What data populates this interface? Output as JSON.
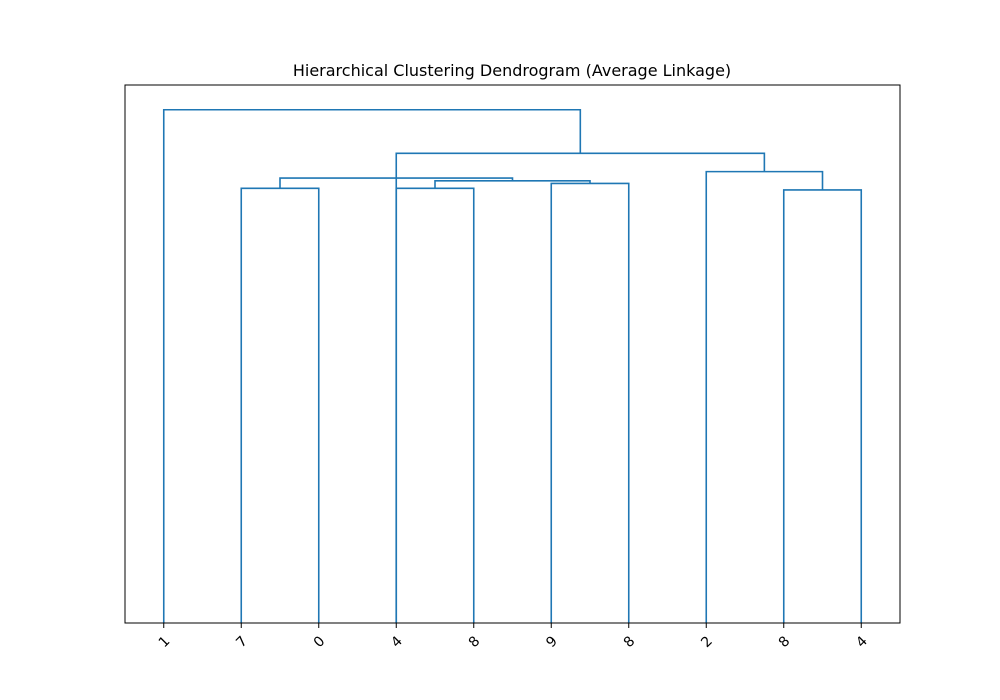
{
  "chart_data": {
    "type": "dendrogram",
    "title": "Hierarchical Clustering Dendrogram (Average Linkage)",
    "xlabel": "",
    "ylabel": "",
    "leaf_labels": [
      "1",
      "7",
      "0",
      "4",
      "8",
      "9",
      "8",
      "2",
      "8",
      "4"
    ],
    "ylim": [
      0,
      1.0
    ],
    "grid": false,
    "y_ticks_shown": false,
    "color": "#1f77b4",
    "links": [
      {
        "left": 2,
        "right": 3,
        "height": 0.808
      },
      {
        "left": 4,
        "right": 5,
        "height": 0.808
      },
      {
        "left": 6,
        "right": 7,
        "height": 0.817
      },
      {
        "left": 9,
        "right": 10,
        "height": 0.805
      },
      {
        "left": 4.5,
        "right": 6.5,
        "height": 0.822
      },
      {
        "left": 8,
        "right": 9.5,
        "height": 0.839
      },
      {
        "left": 2.5,
        "right": 5.5,
        "height": 0.827
      },
      {
        "left": 4,
        "right": 8.75,
        "height": 0.873
      },
      {
        "left": 1,
        "right": 6.375,
        "height": 0.954
      }
    ]
  }
}
